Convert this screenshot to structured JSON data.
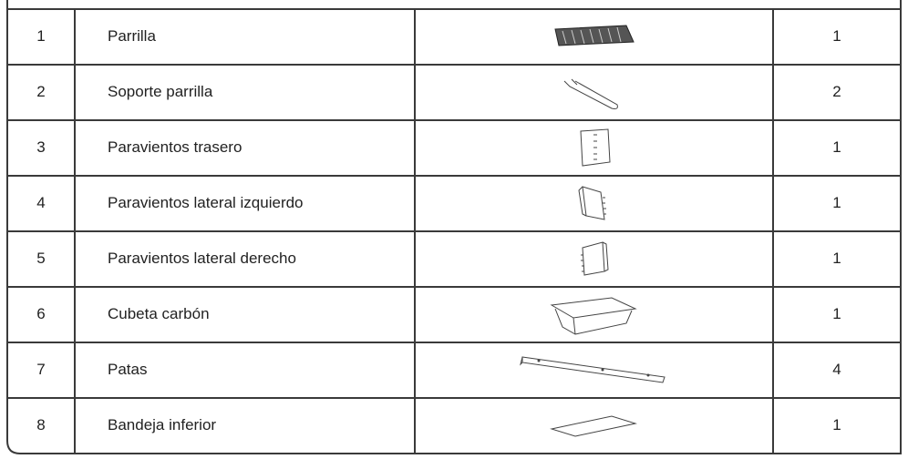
{
  "table": {
    "rows": [
      [
        1,
        "Parrilla",
        1
      ],
      [
        2,
        "Soporte parrilla",
        2
      ],
      [
        3,
        "Paravientos trasero",
        1
      ],
      [
        4,
        "Paravientos lateral izquierdo",
        1
      ],
      [
        5,
        "Paravientos lateral derecho",
        1
      ],
      [
        6,
        "Cubeta carbón",
        1
      ],
      [
        7,
        "Patas",
        4
      ],
      [
        8,
        "Bandeja inferior",
        1
      ]
    ]
  }
}
